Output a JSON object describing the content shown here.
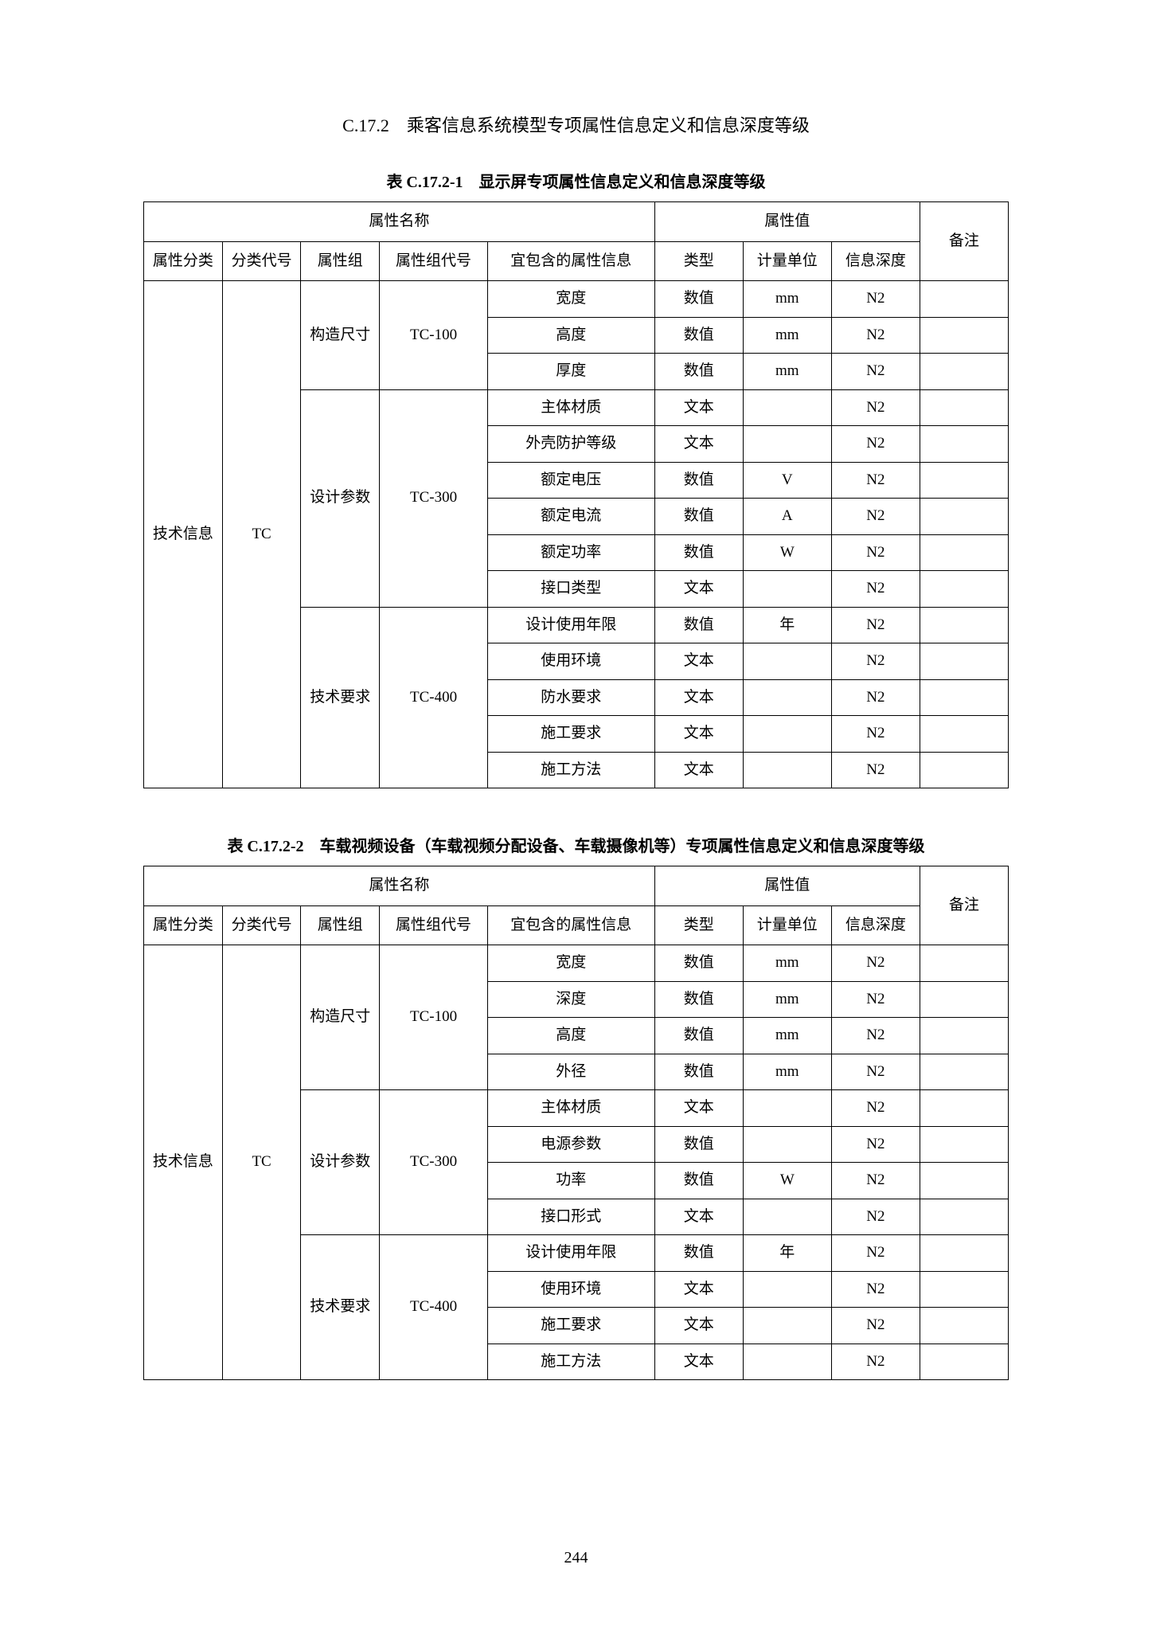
{
  "section_title": "C.17.2　乘客信息系统模型专项属性信息定义和信息深度等级",
  "page_number": "244",
  "table1": {
    "caption": "表 C.17.2-1　显示屏专项属性信息定义和信息深度等级",
    "header": {
      "attr_name": "属性名称",
      "attr_value": "属性值",
      "remark": "备注",
      "attr_class": "属性分类",
      "class_code": "分类代号",
      "attr_group": "属性组",
      "group_code": "属性组代号",
      "contained": "宜包含的属性信息",
      "type": "类型",
      "unit": "计量单位",
      "depth": "信息深度"
    },
    "body_labels": {
      "attr_class_val": "技术信息",
      "class_code_val": "TC",
      "g1_name": "构造尺寸",
      "g1_code": "TC-100",
      "g2_name": "设计参数",
      "g2_code": "TC-300",
      "g3_name": "技术要求",
      "g3_code": "TC-400"
    },
    "rows": [
      {
        "prop": "宽度",
        "type": "数值",
        "unit": "mm",
        "depth": "N2",
        "remark": ""
      },
      {
        "prop": "高度",
        "type": "数值",
        "unit": "mm",
        "depth": "N2",
        "remark": ""
      },
      {
        "prop": "厚度",
        "type": "数值",
        "unit": "mm",
        "depth": "N2",
        "remark": ""
      },
      {
        "prop": "主体材质",
        "type": "文本",
        "unit": "",
        "depth": "N2",
        "remark": ""
      },
      {
        "prop": "外壳防护等级",
        "type": "文本",
        "unit": "",
        "depth": "N2",
        "remark": ""
      },
      {
        "prop": "额定电压",
        "type": "数值",
        "unit": "V",
        "depth": "N2",
        "remark": ""
      },
      {
        "prop": "额定电流",
        "type": "数值",
        "unit": "A",
        "depth": "N2",
        "remark": ""
      },
      {
        "prop": "额定功率",
        "type": "数值",
        "unit": "W",
        "depth": "N2",
        "remark": ""
      },
      {
        "prop": "接口类型",
        "type": "文本",
        "unit": "",
        "depth": "N2",
        "remark": ""
      },
      {
        "prop": "设计使用年限",
        "type": "数值",
        "unit": "年",
        "depth": "N2",
        "remark": ""
      },
      {
        "prop": "使用环境",
        "type": "文本",
        "unit": "",
        "depth": "N2",
        "remark": ""
      },
      {
        "prop": "防水要求",
        "type": "文本",
        "unit": "",
        "depth": "N2",
        "remark": ""
      },
      {
        "prop": "施工要求",
        "type": "文本",
        "unit": "",
        "depth": "N2",
        "remark": ""
      },
      {
        "prop": "施工方法",
        "type": "文本",
        "unit": "",
        "depth": "N2",
        "remark": ""
      }
    ]
  },
  "table2": {
    "caption": "表 C.17.2-2　车载视频设备（车载视频分配设备、车载摄像机等）专项属性信息定义和信息深度等级",
    "header": {
      "attr_name": "属性名称",
      "attr_value": "属性值",
      "remark": "备注",
      "attr_class": "属性分类",
      "class_code": "分类代号",
      "attr_group": "属性组",
      "group_code": "属性组代号",
      "contained": "宜包含的属性信息",
      "type": "类型",
      "unit": "计量单位",
      "depth": "信息深度"
    },
    "body_labels": {
      "attr_class_val": "技术信息",
      "class_code_val": "TC",
      "g1_name": "构造尺寸",
      "g1_code": "TC-100",
      "g2_name": "设计参数",
      "g2_code": "TC-300",
      "g3_name": "技术要求",
      "g3_code": "TC-400"
    },
    "rows": [
      {
        "prop": "宽度",
        "type": "数值",
        "unit": "mm",
        "depth": "N2",
        "remark": ""
      },
      {
        "prop": "深度",
        "type": "数值",
        "unit": "mm",
        "depth": "N2",
        "remark": ""
      },
      {
        "prop": "高度",
        "type": "数值",
        "unit": "mm",
        "depth": "N2",
        "remark": ""
      },
      {
        "prop": "外径",
        "type": "数值",
        "unit": "mm",
        "depth": "N2",
        "remark": ""
      },
      {
        "prop": "主体材质",
        "type": "文本",
        "unit": "",
        "depth": "N2",
        "remark": ""
      },
      {
        "prop": "电源参数",
        "type": "数值",
        "unit": "",
        "depth": "N2",
        "remark": ""
      },
      {
        "prop": "功率",
        "type": "数值",
        "unit": "W",
        "depth": "N2",
        "remark": ""
      },
      {
        "prop": "接口形式",
        "type": "文本",
        "unit": "",
        "depth": "N2",
        "remark": ""
      },
      {
        "prop": "设计使用年限",
        "type": "数值",
        "unit": "年",
        "depth": "N2",
        "remark": ""
      },
      {
        "prop": "使用环境",
        "type": "文本",
        "unit": "",
        "depth": "N2",
        "remark": ""
      },
      {
        "prop": "施工要求",
        "type": "文本",
        "unit": "",
        "depth": "N2",
        "remark": ""
      },
      {
        "prop": "施工方法",
        "type": "文本",
        "unit": "",
        "depth": "N2",
        "remark": ""
      }
    ]
  }
}
